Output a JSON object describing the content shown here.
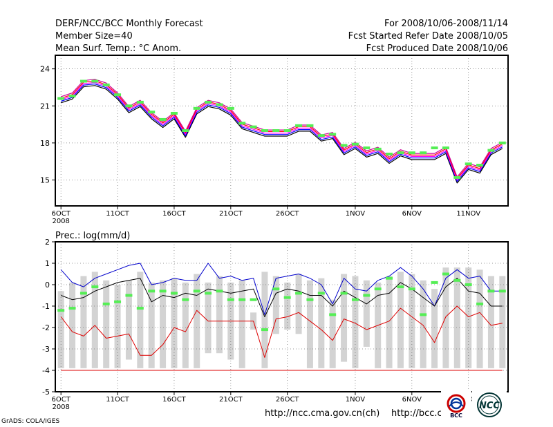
{
  "header": {
    "title": "DERF/NCC/BCC Monthly Forecast",
    "member": "Member Size=40",
    "variable": "Mean Surf. Temp.: °C Anom.",
    "period": "For 2008/10/06-2008/11/14",
    "started": "Fcst Started Refer Date 2008/10/05",
    "produced": "Fcst Produced Date 2008/10/06"
  },
  "footer": {
    "url1": "http://ncc.cma.gov.cn(ch)",
    "url2": "http://bcc.c",
    "credit": "GrADS: COLA/IGES"
  },
  "logos": {
    "bcc": "BCC",
    "ncc": "NCC"
  },
  "colors": {
    "ensemble": [
      "#000000",
      "#0000ff",
      "#ff00ff",
      "#ff0000",
      "#cc0099"
    ],
    "marker": "#55ee55",
    "box": "#d3d3d3",
    "upper": "#0000cc",
    "lower": "#dd0000"
  },
  "chart_data": [
    {
      "type": "line",
      "title": "Mean Surf. Temp.: °C Anom.",
      "x_tick_labels": [
        "6OCT",
        "11OCT",
        "16OCT",
        "21OCT",
        "26OCT",
        "1NOV",
        "6NOV",
        "11NOV"
      ],
      "x_tick_days": [
        0,
        5,
        10,
        15,
        20,
        26,
        31,
        36
      ],
      "year_label": "2008",
      "ylim": [
        12.9,
        25.1
      ],
      "yticks": [
        15,
        18,
        21,
        24
      ],
      "n_days": 40,
      "series": [
        {
          "name": "ensemble-mean",
          "values": [
            21.5,
            21.8,
            22.8,
            22.9,
            22.6,
            21.8,
            20.7,
            21.2,
            20.2,
            19.5,
            20.2,
            18.7,
            20.6,
            21.2,
            21.0,
            20.5,
            19.4,
            19.1,
            18.8,
            18.8,
            18.8,
            19.2,
            19.2,
            18.4,
            18.6,
            17.3,
            17.8,
            17.1,
            17.4,
            16.6,
            17.2,
            16.9,
            16.9,
            16.9,
            17.4,
            15.0,
            16.1,
            15.8,
            17.3,
            17.8
          ]
        }
      ],
      "spread_offsets": [
        -0.25,
        -0.12,
        0,
        0.12,
        0.25
      ],
      "markers": [
        21.6,
        21.8,
        23.0,
        23.0,
        22.7,
        21.9,
        21.0,
        21.3,
        20.5,
        19.9,
        20.4,
        19.0,
        20.8,
        21.3,
        21.1,
        20.8,
        19.6,
        19.3,
        19.0,
        19.0,
        19.0,
        19.4,
        19.4,
        18.6,
        18.7,
        17.8,
        17.9,
        17.6,
        17.5,
        17.1,
        17.2,
        17.2,
        17.2,
        17.6,
        17.6,
        15.2,
        16.3,
        16.2,
        17.4,
        18.0
      ]
    },
    {
      "type": "box",
      "title": "Prec.: log(mm/d)",
      "ylabel": "Prec.: log(mm/d)",
      "ylim": [
        -5,
        2
      ],
      "yticks": [
        -5,
        -4,
        -3,
        -2,
        -1,
        0,
        1,
        2
      ],
      "n_days": 40,
      "box_low": [
        -3.9,
        -3.9,
        -3.9,
        -3.9,
        -3.9,
        -3.9,
        -3.5,
        -3.9,
        -3.9,
        -3.9,
        -3.9,
        -3.9,
        -3.9,
        -3.2,
        -3.2,
        -3.5,
        -3.9,
        -2.1,
        -3.9,
        -2.3,
        -2.1,
        -2.3,
        -3.9,
        -3.9,
        -3.9,
        -3.6,
        -3.9,
        -2.9,
        -3.9,
        -3.9,
        -3.9,
        -3.9,
        -3.9,
        -3.9,
        -3.9,
        -3.9,
        -3.9,
        -3.9,
        -3.9,
        -3.9
      ],
      "box_high": [
        -0.3,
        0.1,
        0.4,
        0.6,
        0.2,
        0.0,
        0.2,
        0.6,
        0.1,
        0.2,
        0.3,
        0.1,
        0.5,
        0.1,
        0.4,
        0.1,
        0.2,
        -1.3,
        0.6,
        0.4,
        0.1,
        0.5,
        0.2,
        0.3,
        -0.7,
        0.5,
        0.4,
        0.2,
        0.1,
        0.4,
        0.6,
        0.5,
        0.2,
        -0.2,
        0.8,
        0.8,
        0.8,
        0.7,
        0.4,
        0.4
      ],
      "series": [
        {
          "name": "upper",
          "color": "#0000cc",
          "values": [
            0.7,
            0.1,
            -0.1,
            0.3,
            0.5,
            0.7,
            0.9,
            1.0,
            0.0,
            0.1,
            0.3,
            0.2,
            0.2,
            1.0,
            0.3,
            0.4,
            0.2,
            0.3,
            -1.4,
            0.3,
            0.4,
            0.5,
            0.3,
            0.0,
            -0.9,
            0.3,
            -0.2,
            -0.3,
            0.2,
            0.4,
            0.8,
            0.4,
            -0.2,
            -1.0,
            0.3,
            0.7,
            0.3,
            0.4,
            -0.3,
            -0.3
          ]
        },
        {
          "name": "ensemble-mean",
          "color": "#000000",
          "values": [
            -0.5,
            -0.7,
            -0.6,
            -0.3,
            -0.1,
            0.1,
            0.2,
            0.3,
            -0.8,
            -0.5,
            -0.6,
            -0.4,
            -0.5,
            -0.2,
            -0.3,
            -0.4,
            -0.3,
            -0.2,
            -1.5,
            -0.4,
            -0.2,
            -0.3,
            -0.5,
            -0.5,
            -1.0,
            -0.3,
            -0.6,
            -0.9,
            -0.5,
            -0.4,
            0.1,
            -0.2,
            -0.6,
            -1.0,
            -0.1,
            0.3,
            -0.3,
            -0.4,
            -1.0,
            -1.0
          ]
        },
        {
          "name": "lower",
          "color": "#dd0000",
          "values": [
            -1.5,
            -2.2,
            -2.4,
            -1.9,
            -2.5,
            -2.4,
            -2.3,
            -3.3,
            -3.3,
            -2.8,
            -2.0,
            -2.2,
            -1.2,
            -1.7,
            -1.7,
            -1.7,
            -1.7,
            -1.7,
            -3.4,
            -1.6,
            -1.5,
            -1.3,
            -1.7,
            -2.1,
            -2.6,
            -1.6,
            -1.8,
            -2.1,
            -1.9,
            -1.7,
            -1.1,
            -1.5,
            -1.9,
            -2.7,
            -1.5,
            -1.0,
            -1.5,
            -1.3,
            -1.9,
            -1.8
          ]
        },
        {
          "name": "floor",
          "color": "#dd0000",
          "values": [
            -4,
            -4,
            -4,
            -4,
            -4,
            -4,
            -4,
            -4,
            -4,
            -4,
            -4,
            -4,
            -4,
            -4,
            -4,
            -4,
            -4,
            -4,
            -4,
            -4,
            -4,
            -4,
            -4,
            -4,
            -4,
            -4,
            -4,
            -4,
            -4,
            -4,
            -4,
            -4,
            -4,
            -4,
            -4,
            -4,
            -4,
            -4,
            -4,
            -4
          ]
        }
      ],
      "markers": [
        -1.2,
        -1.1,
        -0.4,
        -0.1,
        -0.9,
        -0.8,
        -0.5,
        -1.1,
        -0.3,
        -0.3,
        -0.4,
        -0.7,
        -0.3,
        -0.4,
        -0.3,
        -0.7,
        -0.7,
        -0.7,
        -2.1,
        -0.2,
        -0.6,
        -0.4,
        -0.7,
        -0.4,
        -1.4,
        -0.4,
        -0.7,
        -0.5,
        -0.2,
        0.3,
        -0.1,
        -0.2,
        -1.4,
        0.1,
        0.5,
        0.2,
        0.0,
        -0.9,
        -0.3,
        -0.3
      ]
    }
  ]
}
